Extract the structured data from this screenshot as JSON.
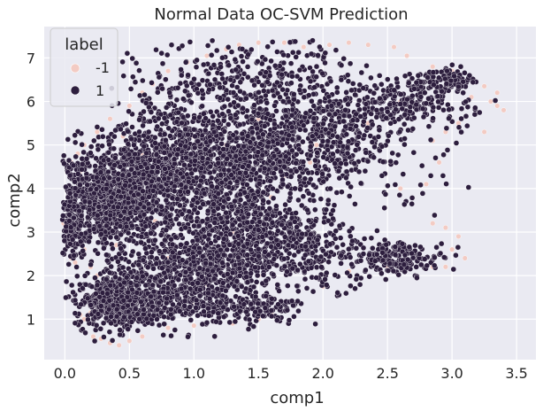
{
  "chart_data": {
    "type": "scatter",
    "title": "Normal Data OC-SVM Prediction",
    "xlabel": "comp1",
    "ylabel": "comp2",
    "xlim": [
      -0.16,
      3.65
    ],
    "ylim": [
      0.07,
      7.72
    ],
    "xticks": [
      0.0,
      0.5,
      1.0,
      1.5,
      2.0,
      2.5,
      3.0,
      3.5
    ],
    "xtick_labels": [
      "0.0",
      "0.5",
      "1.0",
      "1.5",
      "2.0",
      "2.5",
      "3.0",
      "3.5"
    ],
    "yticks": [
      1,
      2,
      3,
      4,
      5,
      6,
      7
    ],
    "ytick_labels": [
      "1",
      "2",
      "3",
      "4",
      "5",
      "6",
      "7"
    ],
    "grid": true,
    "legend": {
      "title": "label",
      "placement": "top-left",
      "entries": [
        {
          "label": "-1",
          "color": "#f3cbc3"
        },
        {
          "label": "1",
          "color": "#2d1e3e"
        }
      ]
    },
    "colors": {
      "inlier": "#2d1e3e",
      "outlier": "#f3cbc3",
      "background": "#eaeaf2",
      "grid": "#ffffff"
    },
    "series": [
      {
        "name": "1",
        "clusters": [
          {
            "cx": 0.35,
            "cy": 3.7,
            "sx": 0.22,
            "sy": 0.5,
            "n": 900
          },
          {
            "cx": 0.75,
            "cy": 4.4,
            "sx": 0.3,
            "sy": 0.55,
            "n": 650
          },
          {
            "cx": 1.2,
            "cy": 4.2,
            "sx": 0.3,
            "sy": 0.65,
            "n": 550
          },
          {
            "cx": 1.6,
            "cy": 5.0,
            "sx": 0.28,
            "sy": 0.6,
            "n": 500
          },
          {
            "cx": 1.45,
            "cy": 6.6,
            "sx": 0.4,
            "sy": 0.45,
            "n": 320
          },
          {
            "cx": 2.1,
            "cy": 5.2,
            "sx": 0.22,
            "sy": 0.5,
            "n": 260
          },
          {
            "cx": 2.55,
            "cy": 5.95,
            "sx": 0.2,
            "sy": 0.28,
            "n": 190
          },
          {
            "cx": 2.95,
            "cy": 6.5,
            "sx": 0.12,
            "sy": 0.16,
            "n": 90
          },
          {
            "cx": 0.4,
            "cy": 1.4,
            "sx": 0.16,
            "sy": 0.3,
            "n": 520
          },
          {
            "cx": 0.8,
            "cy": 2.0,
            "sx": 0.25,
            "sy": 0.45,
            "n": 450
          },
          {
            "cx": 1.25,
            "cy": 2.4,
            "sx": 0.27,
            "sy": 0.5,
            "n": 550
          },
          {
            "cx": 1.65,
            "cy": 3.0,
            "sx": 0.22,
            "sy": 0.4,
            "n": 260
          },
          {
            "cx": 2.0,
            "cy": 2.4,
            "sx": 0.22,
            "sy": 0.35,
            "n": 150
          },
          {
            "cx": 2.6,
            "cy": 2.4,
            "sx": 0.18,
            "sy": 0.18,
            "n": 160
          },
          {
            "cx": 1.1,
            "cy": 1.25,
            "sx": 0.3,
            "sy": 0.22,
            "n": 160
          },
          {
            "cx": 1.5,
            "cy": 1.3,
            "sx": 0.15,
            "sy": 0.15,
            "n": 80
          },
          {
            "cx": 0.9,
            "cy": 5.3,
            "sx": 0.3,
            "sy": 0.45,
            "n": 200
          },
          {
            "cx": 2.3,
            "cy": 4.6,
            "sx": 0.3,
            "sy": 0.6,
            "n": 60
          },
          {
            "cx": 2.8,
            "cy": 4.8,
            "sx": 0.3,
            "sy": 0.9,
            "n": 35
          },
          {
            "cx": 3.0,
            "cy": 6.0,
            "sx": 0.2,
            "sy": 0.35,
            "n": 30
          },
          {
            "cx": 0.05,
            "cy": 3.3,
            "sx": 0.05,
            "sy": 0.45,
            "n": 140
          }
        ]
      },
      {
        "name": "-1",
        "points": [
          [
            -0.01,
            3.2
          ],
          [
            0.02,
            2.7
          ],
          [
            0.0,
            3.6
          ],
          [
            0.05,
            2.4
          ],
          [
            0.08,
            2.3
          ],
          [
            0.03,
            4.0
          ],
          [
            0.06,
            4.3
          ],
          [
            0.1,
            4.8
          ],
          [
            0.15,
            5.0
          ],
          [
            0.25,
            5.3
          ],
          [
            0.35,
            5.6
          ],
          [
            0.5,
            5.9
          ],
          [
            0.6,
            6.2
          ],
          [
            0.68,
            6.4
          ],
          [
            0.8,
            6.7
          ],
          [
            0.95,
            6.9
          ],
          [
            1.1,
            7.05
          ],
          [
            1.25,
            7.2
          ],
          [
            1.35,
            7.3
          ],
          [
            1.5,
            7.35
          ],
          [
            1.7,
            7.35
          ],
          [
            1.85,
            7.25
          ],
          [
            2.05,
            7.3
          ],
          [
            2.2,
            7.35
          ],
          [
            2.35,
            7.3
          ],
          [
            2.55,
            7.25
          ],
          [
            2.65,
            7.05
          ],
          [
            2.85,
            6.8
          ],
          [
            3.0,
            6.7
          ],
          [
            3.15,
            6.5
          ],
          [
            3.25,
            6.35
          ],
          [
            3.35,
            6.2
          ],
          [
            3.4,
            5.8
          ],
          [
            3.35,
            5.9
          ],
          [
            3.15,
            6.1
          ],
          [
            3.05,
            5.5
          ],
          [
            2.95,
            5.3
          ],
          [
            2.85,
            5.1
          ],
          [
            2.9,
            4.6
          ],
          [
            2.8,
            4.1
          ],
          [
            2.85,
            3.2
          ],
          [
            2.95,
            3.1
          ],
          [
            3.05,
            2.9
          ],
          [
            3.0,
            2.6
          ],
          [
            3.1,
            2.4
          ],
          [
            2.95,
            2.2
          ],
          [
            2.85,
            2.2
          ],
          [
            2.5,
            2.2
          ],
          [
            2.2,
            2.1
          ],
          [
            2.0,
            1.75
          ],
          [
            1.75,
            1.4
          ],
          [
            1.6,
            1.15
          ],
          [
            1.5,
            1.0
          ],
          [
            1.3,
            0.9
          ],
          [
            1.0,
            0.85
          ],
          [
            0.8,
            0.8
          ],
          [
            0.6,
            0.6
          ],
          [
            0.5,
            0.5
          ],
          [
            0.42,
            0.4
          ],
          [
            0.35,
            0.45
          ],
          [
            0.28,
            0.55
          ],
          [
            0.22,
            0.6
          ],
          [
            0.15,
            1.0
          ],
          [
            0.12,
            1.1
          ],
          [
            0.2,
            1.15
          ],
          [
            0.3,
            1.7
          ],
          [
            0.25,
            2.0
          ],
          [
            0.2,
            2.2
          ],
          [
            0.15,
            2.6
          ],
          [
            0.1,
            3.0
          ],
          [
            0.2,
            3.1
          ],
          [
            0.3,
            3.2
          ],
          [
            0.4,
            3.3
          ],
          [
            0.5,
            3.1
          ],
          [
            0.7,
            3.25
          ],
          [
            0.9,
            3.5
          ],
          [
            0.35,
            3.9
          ],
          [
            0.55,
            4.0
          ],
          [
            0.85,
            4.2
          ],
          [
            1.2,
            3.9
          ],
          [
            1.4,
            3.5
          ],
          [
            1.3,
            3.0
          ],
          [
            1.0,
            2.6
          ],
          [
            0.8,
            2.4
          ],
          [
            1.1,
            1.8
          ],
          [
            0.7,
            1.5
          ],
          [
            0.5,
            1.8
          ],
          [
            1.5,
            2.0
          ],
          [
            1.7,
            4.3
          ],
          [
            1.9,
            4.6
          ],
          [
            1.0,
            5.2
          ],
          [
            0.6,
            4.8
          ],
          [
            0.45,
            5.2
          ],
          [
            1.25,
            5.0
          ],
          [
            1.5,
            5.6
          ],
          [
            1.95,
            5.0
          ],
          [
            2.35,
            5.5
          ],
          [
            2.6,
            6.0
          ],
          [
            0.4,
            2.7
          ],
          [
            0.6,
            2.9
          ],
          [
            1.6,
            3.8
          ],
          [
            0.98,
            1.35
          ],
          [
            2.6,
            4.0
          ],
          [
            3.25,
            5.3
          ],
          [
            3.3,
            6.0
          ],
          [
            0.05,
            4.6
          ],
          [
            0.12,
            4.4
          ],
          [
            0.0,
            2.9
          ]
        ]
      }
    ]
  }
}
